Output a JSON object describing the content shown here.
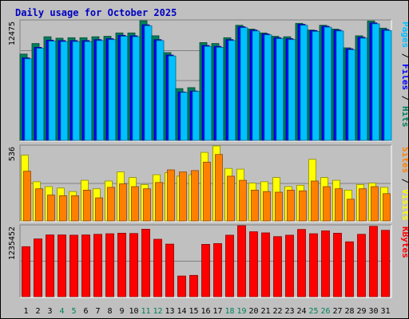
{
  "colors": {
    "background": "#c0c0c0",
    "plot_bg": "#c0c0c0",
    "title": "#0000c0",
    "hits": "#00805c",
    "files": "#0000ff",
    "pages": "#00c0ff",
    "visits": "#ffff00",
    "sites": "#ff8000",
    "kbytes": "#ff0000",
    "weekend_day": "#00805c",
    "weekday": "#000000"
  },
  "chart_data": {
    "type": "bar",
    "title": "Daily usage for October 2025",
    "categories": [
      "1",
      "2",
      "3",
      "4",
      "5",
      "6",
      "7",
      "8",
      "9",
      "10",
      "11",
      "12",
      "13",
      "14",
      "15",
      "16",
      "17",
      "18",
      "19",
      "20",
      "21",
      "22",
      "23",
      "24",
      "25",
      "26",
      "27",
      "28",
      "29",
      "30",
      "31"
    ],
    "weekend_days": [
      "4",
      "5",
      "11",
      "12",
      "18",
      "19",
      "25",
      "26"
    ],
    "panels": [
      {
        "name": "hits_files_pages",
        "max_label": "12475",
        "ymax": 12475,
        "legend": [
          {
            "text": "Pages",
            "color_key": "pages"
          },
          {
            "text": " / ",
            "color_key": "weekday"
          },
          {
            "text": "Files",
            "color_key": "files"
          },
          {
            "text": " / ",
            "color_key": "weekday"
          },
          {
            "text": "Hits",
            "color_key": "hits"
          }
        ],
        "series": [
          {
            "name": "Hits",
            "color_key": "hits",
            "values": [
              9000,
              10100,
              10800,
              10650,
              10700,
              10700,
              10800,
              10850,
              11200,
              11200,
              12475,
              10900,
              9150,
              5400,
              5500,
              10200,
              10100,
              10700,
              12000,
              11600,
              11200,
              10850,
              10800,
              12200,
              11500,
              12000,
              11600,
              9650,
              10900,
              12450,
              11700
            ]
          },
          {
            "name": "Files",
            "color_key": "files",
            "values": [
              8600,
              9700,
              10450,
              10400,
              10400,
              10400,
              10500,
              10600,
              10950,
              10900,
              12050,
              10500,
              8900,
              5050,
              5150,
              9900,
              9800,
              10500,
              11850,
              11500,
              11100,
              10700,
              10600,
              12100,
              11450,
              11900,
              11500,
              9550,
              10750,
              12250,
              11550
            ]
          },
          {
            "name": "Pages",
            "color_key": "pages",
            "values": [
              8500,
              9600,
              10350,
              10300,
              10300,
              10300,
              10400,
              10500,
              10850,
              10800,
              11950,
              10400,
              8800,
              5000,
              5100,
              9800,
              9700,
              10400,
              11750,
              11400,
              11000,
              10600,
              10500,
              12000,
              11350,
              11800,
              11400,
              9450,
              10650,
              12150,
              11450
            ]
          }
        ]
      },
      {
        "name": "visits_sites",
        "max_label": "536",
        "ymax": 536,
        "legend": [
          {
            "text": "Sites",
            "color_key": "sites"
          },
          {
            "text": " / ",
            "color_key": "weekday"
          },
          {
            "text": "Visits",
            "color_key": "visits"
          }
        ],
        "series": [
          {
            "name": "Visits",
            "color_key": "visits",
            "values": [
              470,
              280,
              245,
              235,
              210,
              290,
              230,
              285,
              350,
              310,
              260,
              330,
              345,
              320,
              330,
              490,
              536,
              375,
              370,
              270,
              280,
              310,
              245,
              255,
              440,
              310,
              290,
              220,
              260,
              270,
              240
            ]
          },
          {
            "name": "Sites",
            "color_key": "sites",
            "values": [
              355,
              230,
              185,
              180,
              180,
              220,
              165,
              240,
              265,
              245,
              230,
              275,
              365,
              350,
              360,
              420,
              475,
              320,
              290,
              220,
              210,
              205,
              220,
              215,
              285,
              245,
              230,
              155,
              230,
              245,
              195
            ]
          }
        ]
      },
      {
        "name": "kbytes",
        "max_label": "1235452",
        "ymax": 1235452,
        "legend": [
          {
            "text": "KBytes",
            "color_key": "kbytes"
          }
        ],
        "series": [
          {
            "name": "KBytes",
            "color_key": "kbytes",
            "values": [
              870000,
              1005000,
              1075000,
              1075000,
              1070000,
              1075000,
              1085000,
              1095000,
              1105000,
              1100000,
              1175000,
              1000000,
              915000,
              360000,
              370000,
              910000,
              925000,
              1070000,
              1235452,
              1130000,
              1110000,
              1045000,
              1070000,
              1170000,
              1095000,
              1145000,
              1105000,
              955000,
              1085000,
              1225000,
              1155000
            ]
          }
        ]
      }
    ]
  }
}
